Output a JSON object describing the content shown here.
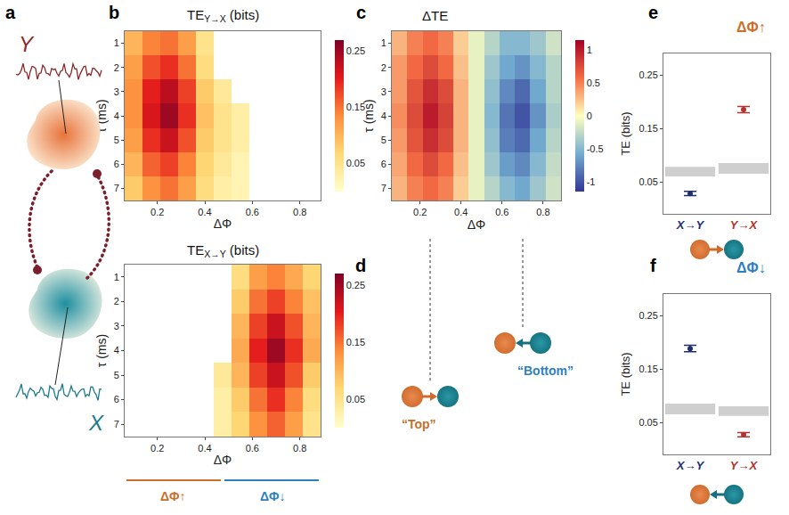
{
  "chart_data": [
    {
      "type": "heatmap",
      "panel": "b",
      "title": "TE",
      "title_sub": "Y→X",
      "title_unit": "(bits)",
      "x": [
        0.1,
        0.175,
        0.25,
        0.325,
        0.4,
        0.475,
        0.55,
        0.625,
        0.7,
        0.775,
        0.85
      ],
      "y": [
        1,
        2,
        3,
        4,
        5,
        6,
        7
      ],
      "z": [
        [
          0.1,
          0.14,
          0.15,
          0.12,
          0.05,
          null,
          null,
          null,
          null,
          null,
          null
        ],
        [
          0.12,
          0.17,
          0.19,
          0.15,
          0.06,
          null,
          null,
          null,
          null,
          null,
          null
        ],
        [
          0.13,
          0.2,
          0.23,
          0.18,
          0.08,
          0.04,
          null,
          null,
          null,
          null,
          null
        ],
        [
          0.13,
          0.21,
          0.25,
          0.19,
          0.09,
          0.05,
          0.03,
          null,
          null,
          null,
          null
        ],
        [
          0.12,
          0.19,
          0.22,
          0.17,
          0.08,
          0.05,
          0.03,
          null,
          null,
          null,
          null
        ],
        [
          0.1,
          0.16,
          0.18,
          0.14,
          0.07,
          0.04,
          0.02,
          null,
          null,
          null,
          null
        ],
        [
          0.08,
          0.13,
          0.15,
          0.12,
          0.06,
          0.03,
          0.02,
          null,
          null,
          null,
          null
        ]
      ],
      "xlim": [
        0.0625,
        0.8875
      ],
      "xticks": [
        0.2,
        0.4,
        0.6,
        0.8
      ],
      "ylim": [
        7.5,
        0.5
      ],
      "yticks": [
        1,
        2,
        3,
        4,
        5,
        6,
        7
      ],
      "xlabel": "ΔΦ",
      "ylabel": "τ (ms)",
      "zlim": [
        0,
        0.27
      ],
      "zticks": [
        0.05,
        0.15,
        0.25
      ],
      "colors": [
        "#ffffcc",
        "#fed976",
        "#fd8d3c",
        "#e31a1c",
        "#800026"
      ]
    },
    {
      "type": "heatmap",
      "title": "TE",
      "title_sub": "X→Y",
      "title_unit": "(bits)",
      "x": [
        0.1,
        0.175,
        0.25,
        0.325,
        0.4,
        0.475,
        0.55,
        0.625,
        0.7,
        0.775,
        0.85
      ],
      "y": [
        1,
        2,
        3,
        4,
        5,
        6,
        7
      ],
      "z": [
        [
          null,
          null,
          null,
          null,
          null,
          null,
          0.06,
          0.12,
          0.14,
          0.11,
          0.07
        ],
        [
          null,
          null,
          null,
          null,
          null,
          null,
          0.08,
          0.15,
          0.18,
          0.14,
          0.09
        ],
        [
          null,
          null,
          null,
          null,
          null,
          null,
          0.1,
          0.18,
          0.22,
          0.17,
          0.1
        ],
        [
          null,
          null,
          null,
          null,
          null,
          null,
          0.11,
          0.2,
          0.25,
          0.19,
          0.11
        ],
        [
          null,
          null,
          null,
          null,
          null,
          0.04,
          0.1,
          0.18,
          0.22,
          0.17,
          0.08
        ],
        [
          null,
          null,
          null,
          null,
          null,
          0.03,
          0.08,
          0.15,
          0.19,
          0.14,
          0.06
        ],
        [
          null,
          null,
          null,
          null,
          null,
          0.03,
          0.07,
          0.13,
          0.16,
          0.12,
          0.05
        ]
      ],
      "xlim": [
        0.0625,
        0.8875
      ],
      "xticks": [
        0.2,
        0.4,
        0.6,
        0.8
      ],
      "ylim": [
        7.5,
        0.5
      ],
      "yticks": [
        1,
        2,
        3,
        4,
        5,
        6,
        7
      ],
      "xlabel": "ΔΦ",
      "ylabel": "τ (ms)",
      "zlim": [
        0,
        0.27
      ],
      "zticks": [
        0.05,
        0.15,
        0.25
      ],
      "colors": [
        "#ffffcc",
        "#fed976",
        "#fd8d3c",
        "#e31a1c",
        "#800026"
      ],
      "annotations": [
        {
          "text": "ΔΦ↑",
          "color": "#c8702c"
        },
        {
          "text": "ΔΦ↓",
          "color": "#2f7fbf"
        }
      ]
    },
    {
      "type": "heatmap",
      "panel": "c",
      "title": "ΔTE",
      "x": [
        0.1,
        0.175,
        0.25,
        0.325,
        0.4,
        0.475,
        0.55,
        0.625,
        0.7,
        0.775,
        0.85
      ],
      "y": [
        1,
        2,
        3,
        4,
        5,
        6,
        7
      ],
      "z": [
        [
          0.3,
          0.5,
          0.6,
          0.5,
          0.2,
          -0.1,
          -0.3,
          -0.5,
          -0.5,
          -0.4,
          -0.2
        ],
        [
          0.4,
          0.6,
          0.75,
          0.6,
          0.25,
          -0.1,
          -0.4,
          -0.6,
          -0.7,
          -0.5,
          -0.3
        ],
        [
          0.4,
          0.7,
          0.9,
          0.75,
          0.3,
          -0.1,
          -0.45,
          -0.75,
          -0.9,
          -0.6,
          -0.3
        ],
        [
          0.45,
          0.75,
          1.0,
          0.8,
          0.3,
          -0.1,
          -0.5,
          -0.85,
          -1.0,
          -0.7,
          -0.35
        ],
        [
          0.4,
          0.7,
          0.9,
          0.75,
          0.3,
          -0.1,
          -0.45,
          -0.8,
          -0.9,
          -0.6,
          -0.3
        ],
        [
          0.35,
          0.6,
          0.75,
          0.6,
          0.25,
          -0.1,
          -0.4,
          -0.65,
          -0.75,
          -0.5,
          -0.25
        ],
        [
          0.3,
          0.5,
          0.6,
          0.5,
          0.2,
          -0.1,
          -0.3,
          -0.5,
          -0.6,
          -0.4,
          -0.2
        ]
      ],
      "xlim": [
        0.0625,
        0.8875
      ],
      "xticks": [
        0.2,
        0.4,
        0.6,
        0.8
      ],
      "ylim": [
        7.5,
        0.5
      ],
      "yticks": [
        1,
        2,
        3,
        4,
        5,
        6,
        7
      ],
      "xlabel": "ΔΦ",
      "ylabel": "τ (ms)",
      "zlim": [
        -1.15,
        1.15
      ],
      "zticks": [
        -1,
        -0.5,
        0,
        0.5,
        1
      ],
      "colors": [
        "#313695",
        "#74add1",
        "#ffffbf",
        "#f46d43",
        "#a50026"
      ]
    },
    {
      "type": "scatter",
      "panel": "e",
      "categories": [
        "X→Y",
        "Y→X"
      ],
      "values": [
        0.028,
        0.185
      ],
      "errors": [
        0.004,
        0.006
      ],
      "colors": [
        "#1f2f6e",
        "#b5332e"
      ],
      "band_low": [
        0.06,
        0.065
      ],
      "band_high": [
        0.078,
        0.085
      ],
      "ylim": [
        -0.01,
        0.29
      ],
      "yticks": [
        0.05,
        0.15,
        0.25
      ],
      "ylabel": "TE (bits)",
      "annotations": [
        {
          "text": "ΔΦ↑",
          "color": "#c8702c"
        }
      ]
    },
    {
      "type": "scatter",
      "panel": "f",
      "categories": [
        "X→Y",
        "Y→X"
      ],
      "values": [
        0.188,
        0.027
      ],
      "errors": [
        0.006,
        0.004
      ],
      "colors": [
        "#1f2f6e",
        "#b5332e"
      ],
      "band_low": [
        0.065,
        0.062
      ],
      "band_high": [
        0.085,
        0.08
      ],
      "ylim": [
        -0.01,
        0.29
      ],
      "yticks": [
        0.05,
        0.15,
        0.25
      ],
      "ylabel": "TE (bits)",
      "annotations": [
        {
          "text": "ΔΦ↓",
          "color": "#2f7fbf"
        }
      ]
    }
  ],
  "diagrams": {
    "a": {
      "panel": "a",
      "nodes": [
        "Y",
        "X"
      ],
      "colors": [
        "#8b2a2a",
        "#1e7b8c"
      ]
    },
    "d": {
      "panel": "d",
      "labels": [
        "“Top”",
        "“Bottom”"
      ],
      "colors": [
        "#c8702c",
        "#2f7fbf"
      ]
    }
  }
}
